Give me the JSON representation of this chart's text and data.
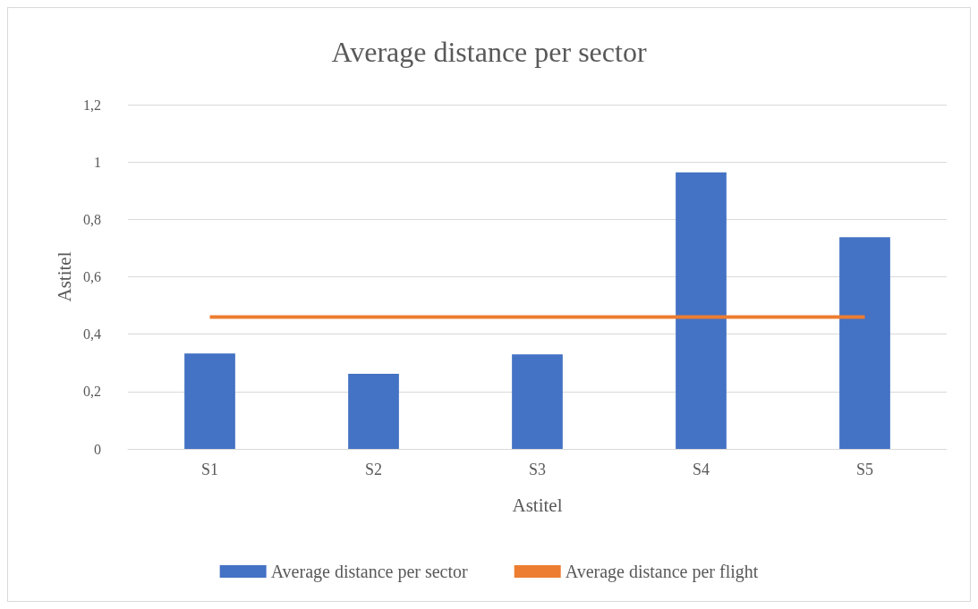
{
  "chart_data": {
    "type": "bar",
    "title": "Average distance per sector",
    "xlabel": "Astitel",
    "ylabel": "Astitel",
    "categories": [
      "S1",
      "S2",
      "S3",
      "S4",
      "S5"
    ],
    "series": [
      {
        "name": "Average distance per sector",
        "color": "#4472c4",
        "values": [
          0.333,
          0.262,
          0.33,
          0.964,
          0.738
        ]
      },
      {
        "name": "Average distance per flight",
        "type": "line",
        "color": "#ed7d31",
        "values": [
          0.46,
          0.46,
          0.46,
          0.46,
          0.46
        ]
      }
    ],
    "ylim": [
      0,
      1.2
    ],
    "yticks": [
      0,
      {
        "value": 0.2,
        "label": "0,2"
      },
      {
        "value": 0.4,
        "label": "0,4"
      },
      {
        "value": 0.6,
        "label": "0,6"
      },
      {
        "value": 0.8,
        "label": "0,8"
      },
      1,
      {
        "value": 1.2,
        "label": "1,2"
      }
    ],
    "grid": "y",
    "legend": "bottom",
    "marker": "none",
    "line_style": "solid"
  }
}
